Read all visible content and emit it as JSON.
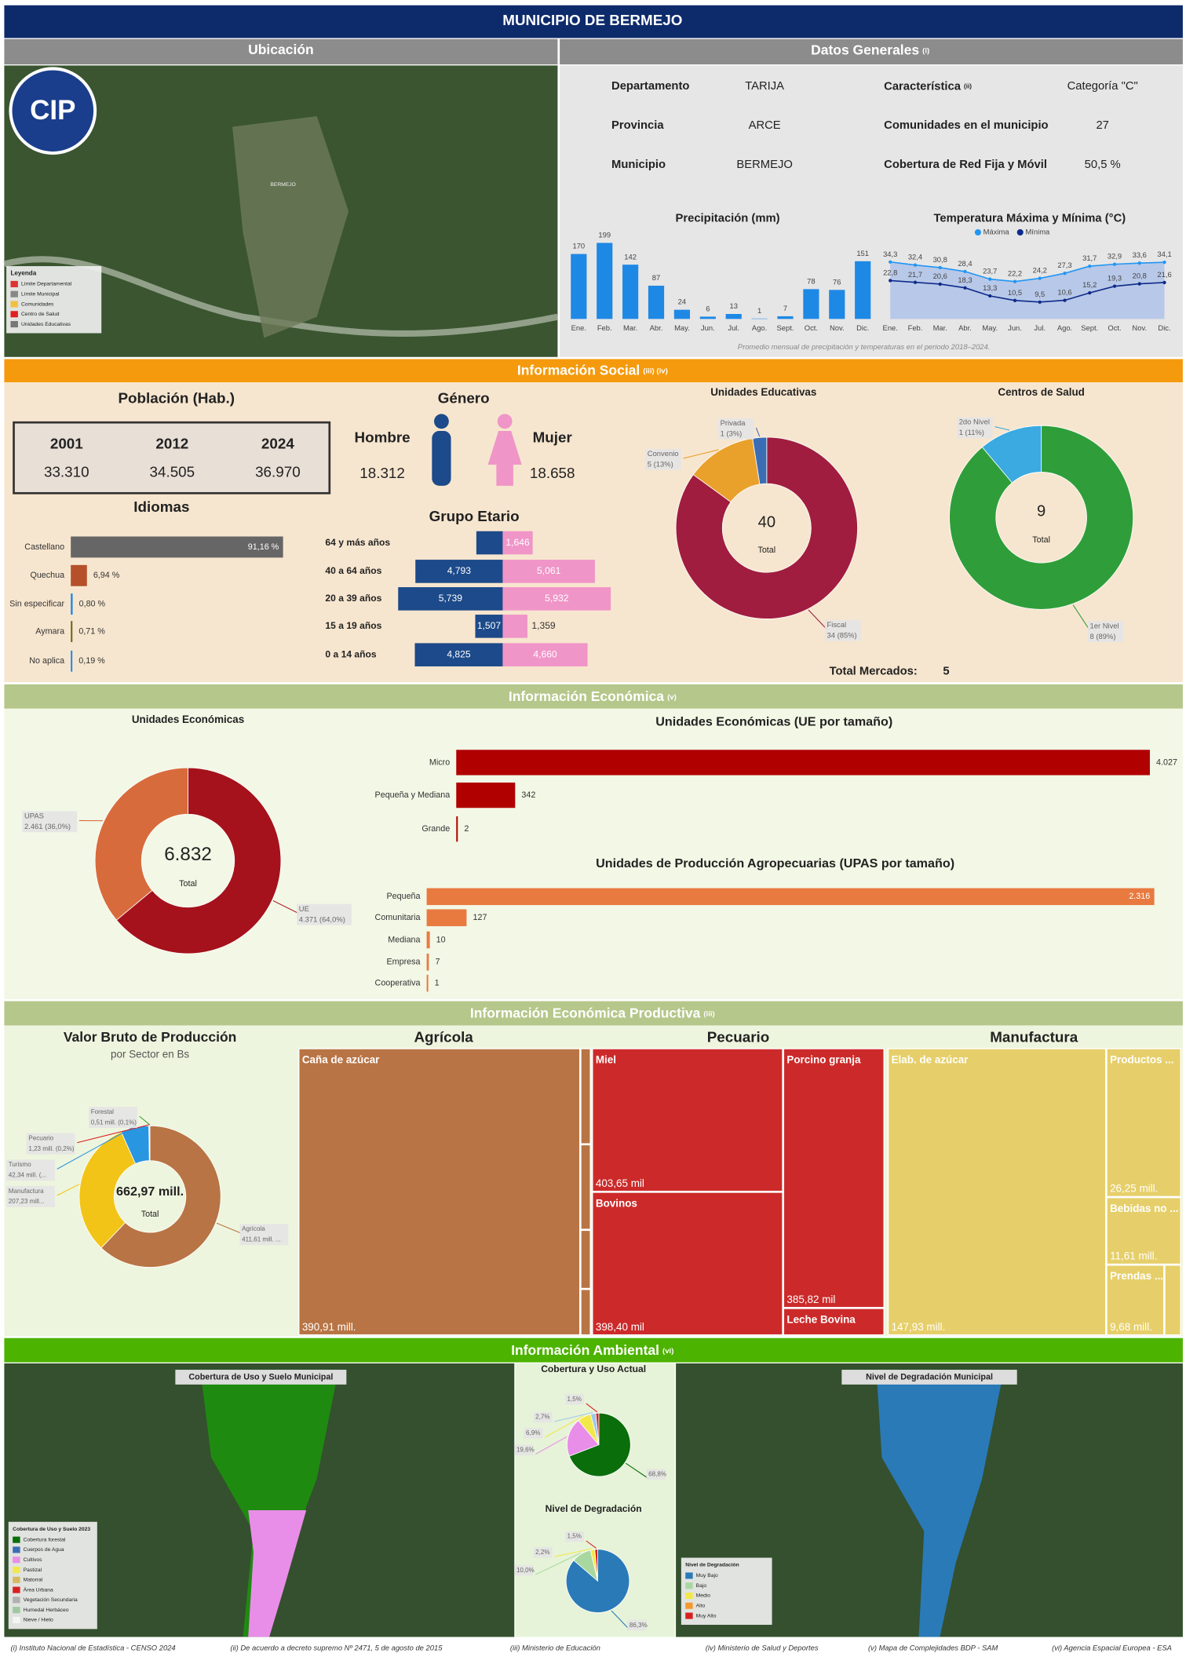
{
  "header": {
    "title": "MUNICIPIO DE BERMEJO"
  },
  "ubicacion": {
    "title": "Ubicación",
    "logo": "CIP",
    "map_label": "BERMEJO",
    "legend_title": "Leyenda",
    "legend": [
      "Límite Departamental",
      "Límite Municipal",
      "Comunidades",
      "Centro de Salud",
      "Unidades Educativas"
    ],
    "legend_colors": [
      "#d33",
      "#888",
      "#f0c040",
      "#e02020",
      "#777"
    ]
  },
  "datos_generales": {
    "title": "Datos Generales",
    "note": "(i)",
    "rows": [
      {
        "label": "Departamento",
        "value": "TARIJA"
      },
      {
        "label": "Provincia",
        "value": "ARCE"
      },
      {
        "label": "Municipio",
        "value": "BERMEJO"
      }
    ],
    "rows2": [
      {
        "label": "Característica",
        "note": "(ii)",
        "value": "Categoría \"C\""
      },
      {
        "label": "Comunidades en el municipio",
        "value": "27"
      },
      {
        "label": "Cobertura de Red Fija y Móvil",
        "value": "50,5 %"
      }
    ]
  },
  "social": {
    "title": "Información Social",
    "note": "(iii) (iv)",
    "poblacion": {
      "title": "Población (Hab.)",
      "years": [
        "2001",
        "2012",
        "2024"
      ],
      "values": [
        "33.310",
        "34.505",
        "36.970"
      ]
    },
    "genero": {
      "title": "Género",
      "labels": [
        "Hombre",
        "Mujer"
      ],
      "values": [
        "18.312",
        "18.658"
      ]
    },
    "mercados": {
      "label": "Total Mercados:",
      "value": "5"
    }
  },
  "economica": {
    "title": "Información Económica",
    "note": "(v)"
  },
  "productiva": {
    "title": "Información Económica Productiva",
    "note": "(iii)"
  },
  "ambiental": {
    "title": "Información Ambiental",
    "note": "(vi)",
    "map1": {
      "title": "Cobertura de Uso y Suelo Municipal",
      "legend_title": "Cobertura de Uso y Suelo 2023",
      "legend": [
        "Cobertura forestal",
        "Cuerpos de Agua",
        "Cultivos",
        "Pastizal",
        "Matorral",
        "Área Urbana",
        "Vegetación Secundaria",
        "Humedal Herbáceo",
        "Nieve / Hielo"
      ],
      "legend_colors": [
        "#0a6e0a",
        "#3b6db5",
        "#e88ee8",
        "#f2e84a",
        "#d6b860",
        "#d62020",
        "#b0b0b0",
        "#9ec8a0",
        "#f4f4f4"
      ]
    },
    "map2": {
      "title": "Nivel de Degradación Municipal",
      "legend_title": "Nivel de Degradación",
      "legend": [
        "Muy Bajo",
        "Bajo",
        "Medio",
        "Alto",
        "Muy Alto"
      ],
      "legend_colors": [
        "#2a7ab8",
        "#a8d8a0",
        "#f2e84a",
        "#f29a30",
        "#d62020"
      ]
    }
  },
  "footer": {
    "notes": [
      "(i) Instituto Nacional de Estadística - CENSO 2024",
      "(ii) De acuerdo a decreto supremo Nº 2471, 5 de agosto de 2015",
      "(iii) Ministerio de Educación",
      "(iv) Ministerio de Salud y Deportes",
      "(v) Mapa de Complejidades BDP - SAM",
      "(vi) Agencia Espacial Europea - ESA"
    ]
  },
  "chart_data": [
    {
      "type": "bar",
      "title": "Precipitación (mm)",
      "categories": [
        "Ene.",
        "Feb.",
        "Mar.",
        "Abr.",
        "May.",
        "Jun.",
        "Jul.",
        "Ago.",
        "Sept.",
        "Oct.",
        "Nov.",
        "Dic."
      ],
      "values": [
        170,
        199,
        142,
        87,
        24,
        6,
        13,
        1,
        7,
        78,
        76,
        151
      ],
      "color": "#1e88e5"
    },
    {
      "type": "line",
      "title": "Temperatura Máxima y Mínima (°C)",
      "categories": [
        "Ene.",
        "Feb.",
        "Mar.",
        "Abr.",
        "May.",
        "Jun.",
        "Jul.",
        "Ago.",
        "Sept.",
        "Oct.",
        "Nov.",
        "Dic."
      ],
      "series": [
        {
          "name": "Máxima",
          "color": "#2196f3",
          "values": [
            34.3,
            32.4,
            30.8,
            28.4,
            23.7,
            22.2,
            24.2,
            27.3,
            31.7,
            32.9,
            33.6,
            34.1
          ],
          "value_labels": [
            "34,3",
            "32,4",
            "30,8",
            "28,4",
            "23,7",
            "22,2",
            "24,2",
            "27,3",
            "31,7",
            "32,9",
            "33,6",
            "34,1"
          ]
        },
        {
          "name": "Mínima",
          "color": "#0d2a8a",
          "values": [
            22.8,
            21.7,
            20.6,
            18.3,
            13.3,
            10.5,
            9.5,
            10.6,
            15.2,
            19.3,
            20.8,
            21.6
          ],
          "value_labels": [
            "22,8",
            "21,7",
            "20,6",
            "18,3",
            "13,3",
            "10,5",
            "9,5",
            "10,6",
            "15,2",
            "19,3",
            "20,8",
            "21,6"
          ]
        }
      ],
      "area_color": "#b8c8e8",
      "note": "Promedio mensual de precipitación y temperaturas en el periodo 2018–2024."
    },
    {
      "type": "hbar",
      "title": "Idiomas",
      "categories": [
        "Castellano",
        "Quechua",
        "Sin especificar",
        "Aymara",
        "No aplica"
      ],
      "values": [
        91.16,
        6.94,
        0.8,
        0.71,
        0.19
      ],
      "value_labels": [
        "91,16 %",
        "6,94 %",
        "0,80 %",
        "0,71 %",
        "0,19 %"
      ],
      "colors": [
        "#666666",
        "#b5502a",
        "#1e88e5",
        "#6b6b1e",
        "#1e88e5"
      ]
    },
    {
      "type": "pyramid",
      "title": "Grupo Etario",
      "categories": [
        "64 y más años",
        "40 a 64 años",
        "20 a 39 años",
        "15 a 19 años",
        "0 a 14 años"
      ],
      "series": [
        {
          "color": "#1c4a8a",
          "values": [
            1448,
            4793,
            5739,
            1507,
            4825
          ],
          "value_labels": [
            "1,448",
            "4,793",
            "5,739",
            "1,507",
            "4,825"
          ]
        },
        {
          "color": "#f095c8",
          "values": [
            1646,
            5061,
            5932,
            1359,
            4660
          ],
          "value_labels": [
            "1,646",
            "5,061",
            "5,932",
            "1,359",
            "4,660"
          ]
        }
      ]
    },
    {
      "type": "donut",
      "title": "Unidades Educativas",
      "categories": [
        "Fiscal",
        "Convenio",
        "Privada"
      ],
      "values": [
        34,
        5,
        1
      ],
      "value_labels": [
        "34 (85%)",
        "5 (13%)",
        "1 (3%)"
      ],
      "colors": [
        "#a01d40",
        "#e9a12c",
        "#3b6db5"
      ],
      "total": 40,
      "center_text": "Total"
    },
    {
      "type": "donut",
      "title": "Centros de Salud",
      "categories": [
        "1er Nivel",
        "2do Nivel"
      ],
      "values": [
        8,
        1
      ],
      "value_labels": [
        "8 (89%)",
        "1 (11%)"
      ],
      "colors": [
        "#2f9e3a",
        "#3aaae0"
      ],
      "total": 9,
      "center_text": "Total"
    },
    {
      "type": "donut",
      "title": "Unidades Económicas",
      "categories": [
        "UE",
        "UPAS"
      ],
      "values": [
        4371,
        2461
      ],
      "value_labels": [
        "4.371 (64,0%)",
        "2.461 (36,0%)"
      ],
      "colors": [
        "#a5121c",
        "#d86b3c"
      ],
      "total": {
        "value": 6832,
        "label": "6.832"
      },
      "center_text": "Total"
    },
    {
      "type": "hbar",
      "title": "Unidades Económicas (UE por tamaño)",
      "categories": [
        "Micro",
        "Pequeña y Mediana",
        "Grande"
      ],
      "values": [
        4027,
        342,
        2
      ],
      "value_labels": [
        "4.027",
        "342",
        "2"
      ],
      "color": "#b00000"
    },
    {
      "type": "hbar",
      "title": "Unidades de Producción Agropecuarias (UPAS por tamaño)",
      "categories": [
        "Pequeña",
        "Comunitaria",
        "Mediana",
        "Empresa",
        "Cooperativa"
      ],
      "values": [
        2316,
        127,
        10,
        7,
        1
      ],
      "value_labels": [
        "2.316",
        "127",
        "10",
        "7",
        "1"
      ],
      "color": "#e87a40"
    },
    {
      "type": "donut",
      "title": "Valor Bruto de Producción",
      "subtitle": "por Sector en Bs",
      "categories": [
        "Agrícola",
        "Manufactura",
        "Turismo",
        "Pecuario",
        "Forestal"
      ],
      "values": [
        411.61,
        207.23,
        42.34,
        1.23,
        0.51
      ],
      "value_labels": [
        "411,61 mill. ...",
        "207,23 mill...",
        "42,34 mill. (...",
        "1,23 mill. (0,2%)",
        "0,51 mill. (0,1%)"
      ],
      "colors": [
        "#b87444",
        "#f2c418",
        "#2896e0",
        "#d62020",
        "#3a9e3a"
      ],
      "total": {
        "value": 662.97,
        "label": "662,97 mill."
      },
      "center_text": "Total"
    },
    {
      "type": "treemap",
      "title": "Agrícola",
      "categories": [
        "Caña de azúcar"
      ],
      "values": [
        390.91
      ],
      "value_labels": [
        "390,91 mill."
      ],
      "color": "#b87444"
    },
    {
      "type": "treemap",
      "title": "Pecuario",
      "categories": [
        "Miel",
        "Bovinos",
        "Porcino granja",
        "Leche Bovina"
      ],
      "values": [
        403.65,
        398.4,
        385.82,
        null
      ],
      "value_labels": [
        "403,65 mil",
        "398,40 mil",
        "385,82 mil",
        null
      ],
      "color": "#cc2a2a"
    },
    {
      "type": "treemap",
      "title": "Manufactura",
      "categories": [
        "Elab. de azúcar",
        "Productos ...",
        "Bebidas no ...",
        "Prendas ..."
      ],
      "values": [
        147.93,
        26.25,
        11.61,
        9.68
      ],
      "value_labels": [
        "147,93 mill.",
        "26,25 mill.",
        "11,61 mill.",
        "9,68 mill."
      ],
      "color": "#e6cf6a"
    },
    {
      "type": "pie",
      "title": "Cobertura y Uso Actual",
      "values": [
        68.8,
        19.6,
        6.9,
        2.7,
        1.5
      ],
      "value_labels": [
        "68,8%",
        "19,6%",
        "6,9%",
        "2,7%",
        "1,5%"
      ],
      "colors": [
        "#0a6e0a",
        "#e88ee8",
        "#f2e84a",
        "#9ec8e8",
        "#d62020"
      ]
    },
    {
      "type": "pie",
      "title": "Nivel de Degradación",
      "values": [
        86.3,
        10.0,
        2.2,
        1.5
      ],
      "value_labels": [
        "86,3%",
        "10,0%",
        "2,2%",
        "1,5%"
      ],
      "colors": [
        "#2a7ab8",
        "#a8d8a0",
        "#f2e84a",
        "#d62020"
      ]
    }
  ]
}
